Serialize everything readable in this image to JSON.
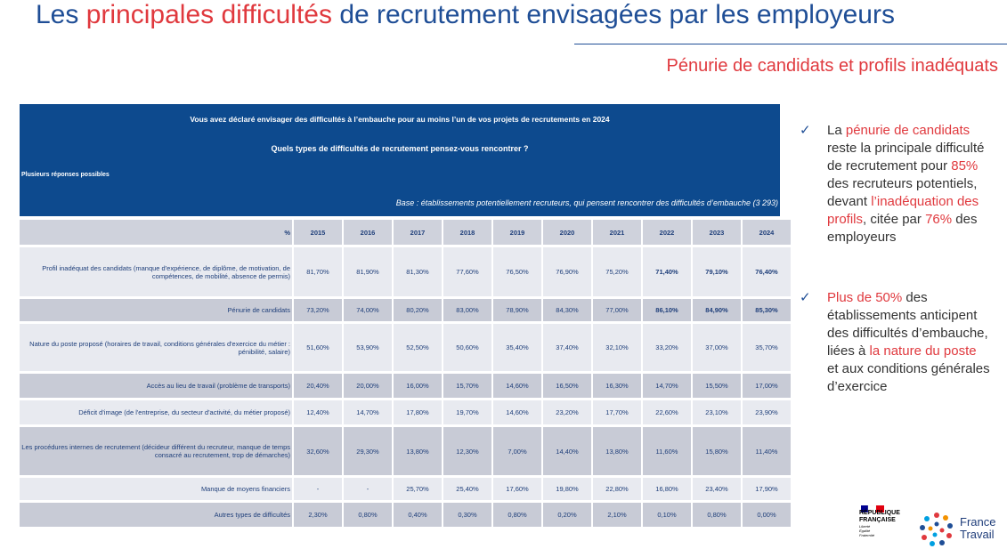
{
  "title": [
    "Les",
    "principales difficultés",
    "de recrutement envisagées par les employeurs"
  ],
  "subtitle": "Pénurie de candidats et profils inadéquats",
  "table": {
    "question": "Vous avez déclaré envisager des difficultés à l’embauche pour au moins l’un de vos projets de recrutements en 2024",
    "subquestion": "Quels types de difficultés de recrutement pensez-vous rencontrer ?",
    "note": "Plusieurs réponses possibles",
    "base": "Base : établissements potentiellement recruteurs, qui pensent rencontrer des difficultés d’embauche (3 293)",
    "columns": [
      "%",
      "2015",
      "2016",
      "2017",
      "2018",
      "2019",
      "2020",
      "2021",
      "2022",
      "2023",
      "2024"
    ],
    "rows": [
      [
        "Profil inadéquat des candidats (manque d'expérience, de diplôme, de motivation, de compétences, de mobilité, absence de permis)",
        "81,70%",
        "81,90%",
        "81,30%",
        "77,60%",
        "76,50%",
        "76,90%",
        "75,20%",
        "71,40%",
        "79,10%",
        "76,40%"
      ],
      [
        "Pénurie de candidats",
        "73,20%",
        "74,00%",
        "80,20%",
        "83,00%",
        "78,90%",
        "84,30%",
        "77,00%",
        "86,10%",
        "84,90%",
        "85,30%"
      ],
      [
        "Nature du poste proposé (horaires de travail, conditions générales d'exercice du métier : pénibilité, salaire)",
        "51,60%",
        "53,90%",
        "52,50%",
        "50,60%",
        "35,40%",
        "37,40%",
        "32,10%",
        "33,20%",
        "37,00%",
        "35,70%"
      ],
      [
        "Accès au lieu de travail (problème de transports)",
        "20,40%",
        "20,00%",
        "16,00%",
        "15,70%",
        "14,60%",
        "16,50%",
        "16,30%",
        "14,70%",
        "15,50%",
        "17,00%"
      ],
      [
        "Déficit d'image (de l'entreprise, du secteur d'activité, du métier proposé)",
        "12,40%",
        "14,70%",
        "17,80%",
        "19,70%",
        "14,60%",
        "23,20%",
        "17,70%",
        "22,60%",
        "23,10%",
        "23,90%"
      ],
      [
        "Les procédures internes de recrutement (décideur différent du recruteur, manque de temps consacré au recrutement, trop de démarches)",
        "32,60%",
        "29,30%",
        "13,80%",
        "12,30%",
        "7,00%",
        "14,40%",
        "13,80%",
        "11,60%",
        "15,80%",
        "11,40%"
      ],
      [
        "Manque de moyens financiers",
        "-",
        "-",
        "25,70%",
        "25,40%",
        "17,60%",
        "19,80%",
        "22,80%",
        "16,80%",
        "23,40%",
        "17,90%"
      ],
      [
        "Autres types de difficultés",
        "2,30%",
        "0,80%",
        "0,40%",
        "0,30%",
        "0,80%",
        "0,20%",
        "2,10%",
        "0,10%",
        "0,80%",
        "0,00%"
      ]
    ]
  },
  "bullets": [
    {
      "marker": "✓",
      "runs": [
        {
          "text": "La ",
          "highlight": false
        },
        {
          "text": "pénurie de candidats",
          "highlight": true
        },
        {
          "text": " reste la principale difficulté de recrutement pour ",
          "highlight": false
        },
        {
          "text": "85%",
          "highlight": true
        },
        {
          "text": " des recruteurs potentiels, devant ",
          "highlight": false
        },
        {
          "text": "l’inadéquation des profils",
          "highlight": true
        },
        {
          "text": ", citée par ",
          "highlight": false
        },
        {
          "text": "76%",
          "highlight": true
        },
        {
          "text": " des employeurs",
          "highlight": false
        }
      ]
    },
    {
      "marker": "✓",
      "runs": [
        {
          "text": "Plus de 50%",
          "highlight": true
        },
        {
          "text": " des établissements anticipent des difficultés d’embauche, liées à ",
          "highlight": false
        },
        {
          "text": "la nature du poste",
          "highlight": true
        },
        {
          "text": " et aux conditions générales d’exercice",
          "highlight": false
        }
      ]
    }
  ],
  "logos": {
    "republique": [
      "RÉPUBLIQUE",
      "FRANÇAISE"
    ],
    "motto": [
      "Liberté",
      "Égalité",
      "Fraternité"
    ],
    "brand": [
      "France",
      "Travail"
    ]
  }
}
